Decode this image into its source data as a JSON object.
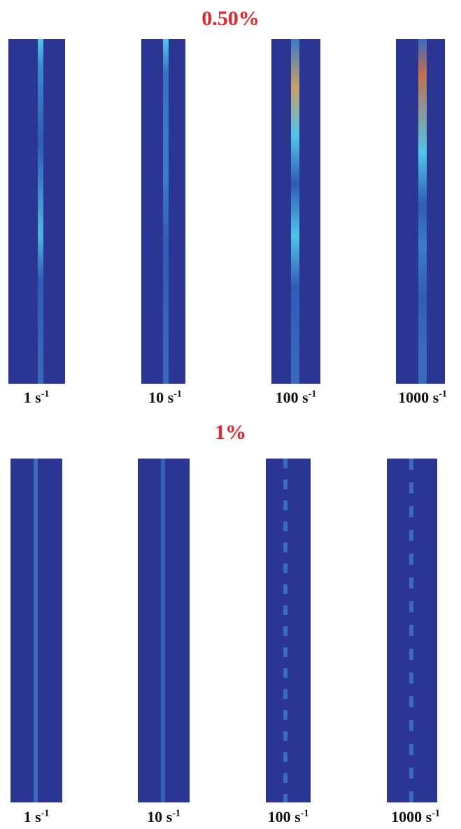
{
  "groups": [
    {
      "title": "0.50%",
      "panels": [
        {
          "rate": "1 s",
          "exponent": "-1"
        },
        {
          "rate": "10 s",
          "exponent": "-1"
        },
        {
          "rate": "100 s",
          "exponent": "-1"
        },
        {
          "rate": "1000 s",
          "exponent": "-1"
        }
      ]
    },
    {
      "title": "1%",
      "panels": [
        {
          "rate": "1 s",
          "exponent": "-1"
        },
        {
          "rate": "10 s",
          "exponent": "-1"
        },
        {
          "rate": "100 s",
          "exponent": "-1"
        },
        {
          "rate": "1000 s",
          "exponent": "-1"
        }
      ]
    }
  ]
}
